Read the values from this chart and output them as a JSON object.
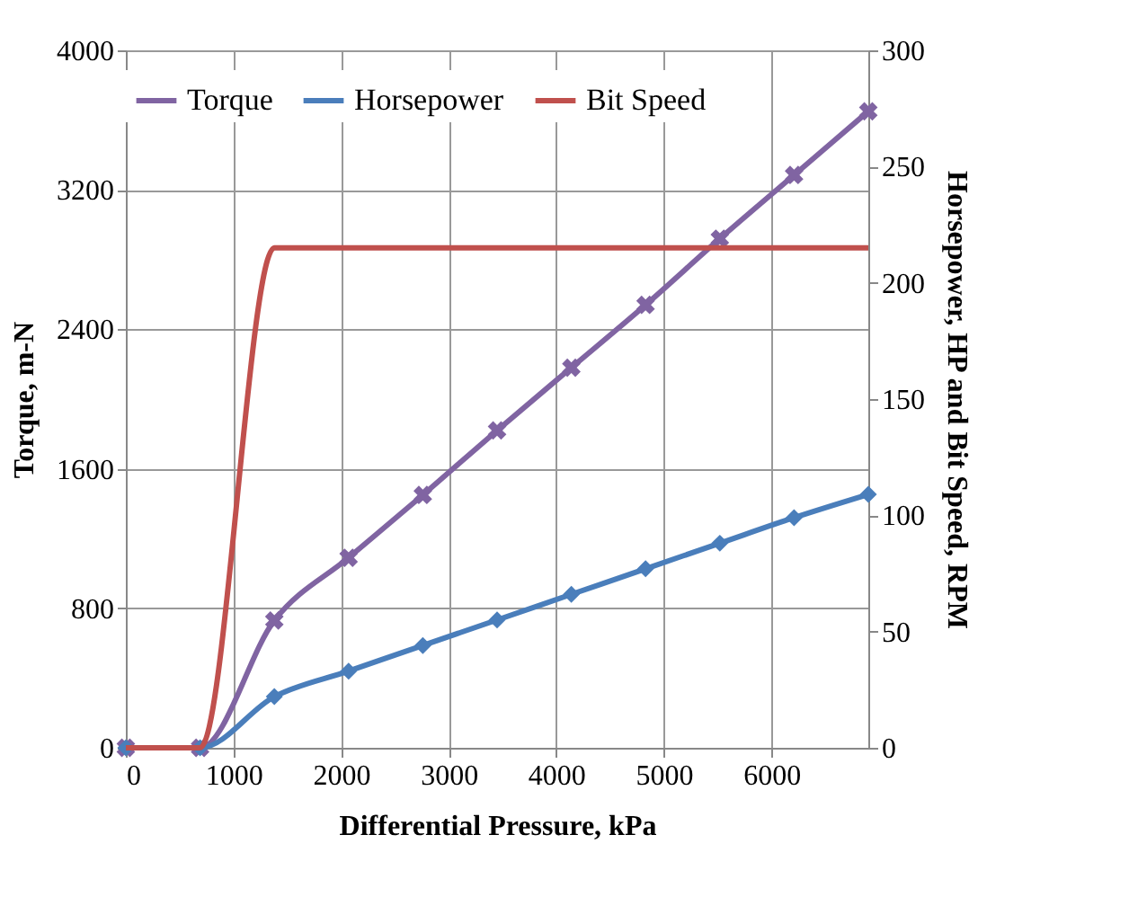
{
  "chart_data": {
    "type": "line",
    "xlabel": "Differential Pressure, kPa",
    "ylabel": "Torque, m-N",
    "y2label": "Horsepower, HP and Bit Speed, RPM",
    "x": [
      0,
      690,
      1380,
      2070,
      2760,
      3450,
      4140,
      4830,
      5520,
      6210,
      6900
    ],
    "series": [
      {
        "name": "Torque",
        "color": "#8064a2",
        "marker": "cross",
        "values": [
          0,
          0,
          730,
          1090,
          1450,
          1820,
          2180,
          2540,
          2920,
          3285,
          3650
        ]
      },
      {
        "name": "Horsepower",
        "color": "#4a7ebb",
        "marker": "diamond",
        "axis": "y2",
        "values": [
          0,
          0,
          22,
          33,
          44,
          55,
          66,
          77,
          88,
          99,
          109
        ]
      },
      {
        "name": "Bit Speed",
        "color": "#c0504d",
        "marker": "none",
        "axis": "y2",
        "x": [
          0,
          690,
          1380,
          6900
        ],
        "values": [
          0,
          0,
          215,
          215
        ]
      }
    ],
    "xlim": [
      0,
      6900
    ],
    "xticks": [
      0,
      1000,
      2000,
      3000,
      4000,
      5000,
      6000
    ],
    "ylim": [
      0,
      4000
    ],
    "yticks": [
      0,
      800,
      1600,
      2400,
      3200,
      4000
    ],
    "y2lim": [
      0,
      300
    ],
    "y2ticks": [
      0,
      50,
      100,
      150,
      200,
      250,
      300
    ],
    "grid": true,
    "legend": "top"
  }
}
